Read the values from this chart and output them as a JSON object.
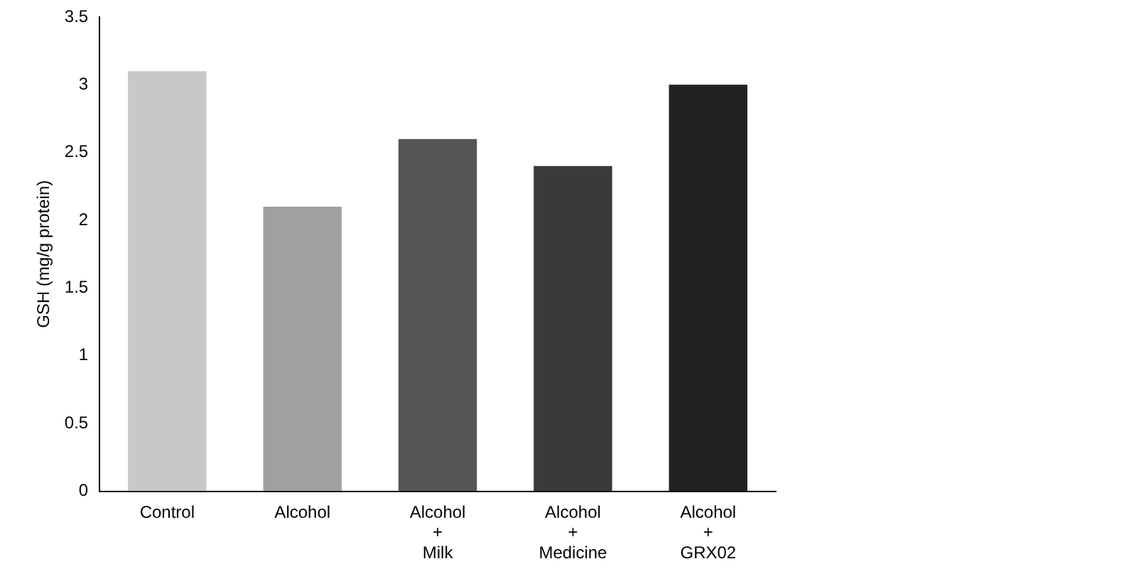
{
  "chart_data": {
    "type": "bar",
    "ylabel": "GSH (mg/g protein)",
    "categories": [
      "Control",
      "Alcohol",
      "Alcohol\n+\nMilk",
      "Alcohol\n+\nMedicine",
      "Alcohol\n+\nGRX02"
    ],
    "values": [
      3.1,
      2.1,
      2.6,
      2.4,
      3.0
    ],
    "colors": [
      "#c8c8c8",
      "#a0a0a0",
      "#555555",
      "#3a3a3a",
      "#222222"
    ],
    "ylim": [
      0,
      3.5
    ],
    "yticks": [
      0,
      0.5,
      1,
      1.5,
      2,
      2.5,
      3,
      3.5
    ],
    "grid": false,
    "legend": false
  }
}
